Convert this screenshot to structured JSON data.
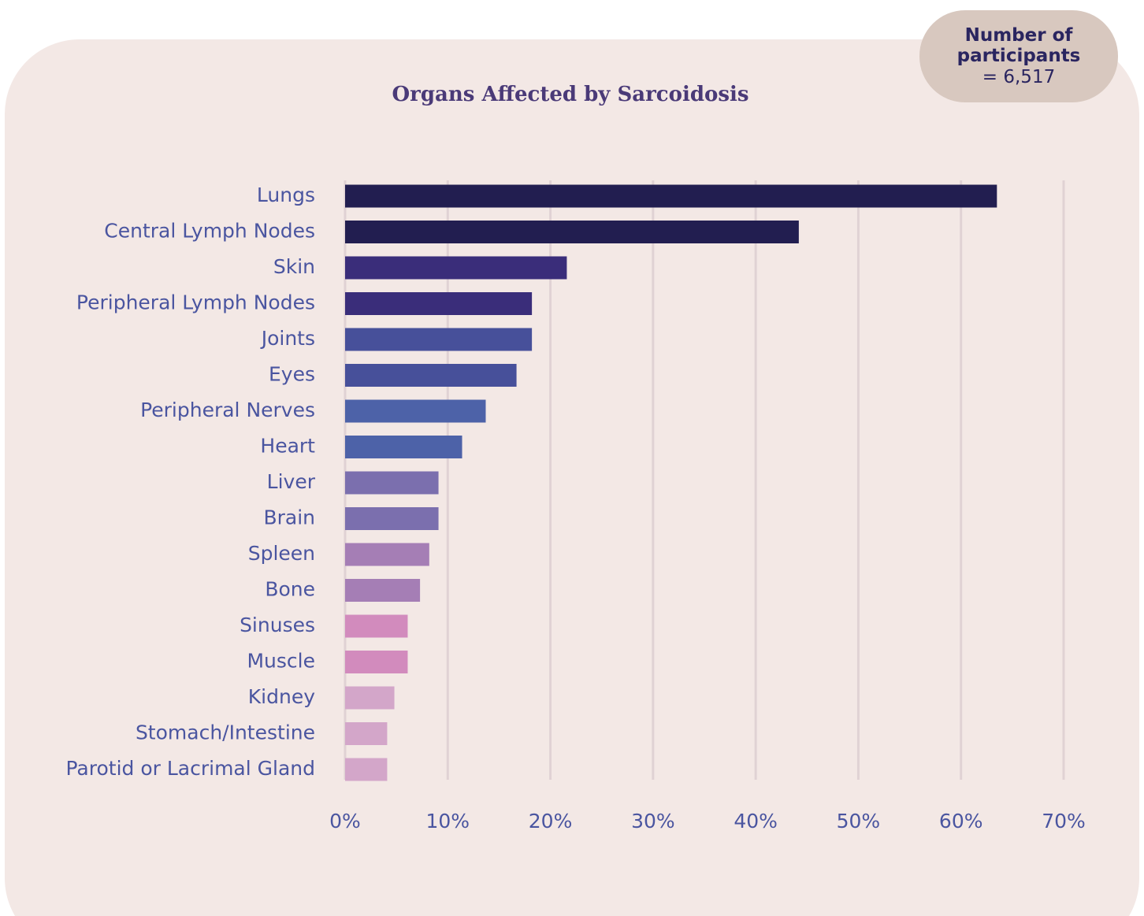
{
  "chart_data": {
    "type": "bar",
    "orientation": "horizontal",
    "title": "Organs Affected by Sarcoidosis",
    "annotation": {
      "title": "Number of participants",
      "value": "= 6,517"
    },
    "categories": [
      "Lungs",
      "Central Lymph Nodes",
      "Skin",
      "Peripheral Lymph Nodes",
      "Joints",
      "Eyes",
      "Peripheral Nerves",
      "Heart",
      "Liver",
      "Brain",
      "Spleen",
      "Bone",
      "Sinuses",
      "Muscle",
      "Kidney",
      "Stomach/Intestine",
      "Parotid or Lacrimal Gland"
    ],
    "values": [
      63.5,
      44.2,
      21.6,
      18.2,
      18.2,
      16.7,
      13.7,
      11.4,
      9.1,
      9.1,
      8.2,
      7.3,
      6.1,
      6.1,
      4.8,
      4.1,
      4.1
    ],
    "colors": [
      "#221e50",
      "#221e50",
      "#3a2d7a",
      "#3a2d7a",
      "#47509a",
      "#47509a",
      "#4d62a8",
      "#4d62a8",
      "#7b6fae",
      "#7b6fae",
      "#a57eb5",
      "#a57eb5",
      "#d28bbd",
      "#d28bbd",
      "#d3a6c9",
      "#d3a6c9",
      "#d3a6c9"
    ],
    "xlim": [
      0,
      70
    ],
    "xticks": [
      {
        "value": 0,
        "label": "0%"
      },
      {
        "value": 10,
        "label": "10%"
      },
      {
        "value": 20,
        "label": "20%"
      },
      {
        "value": 30,
        "label": "30%"
      },
      {
        "value": 40,
        "label": "40%"
      },
      {
        "value": 50,
        "label": "50%"
      },
      {
        "value": 60,
        "label": "60%"
      },
      {
        "value": 70,
        "label": "70%"
      }
    ],
    "grid": true
  }
}
